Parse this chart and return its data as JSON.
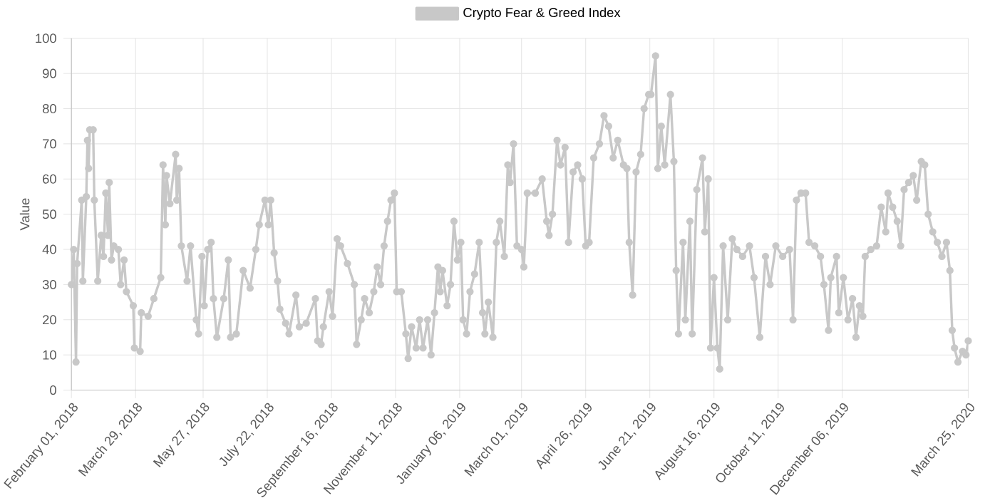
{
  "chart_data": {
    "type": "line",
    "ylabel": "Value",
    "xlim": [
      "2018-02-01",
      "2020-03-25"
    ],
    "ylim": [
      0,
      100
    ],
    "yticks": [
      0,
      10,
      20,
      30,
      40,
      50,
      60,
      70,
      80,
      90,
      100
    ],
    "xticks": [
      {
        "value": "2018-02-01",
        "label": "February 01, 2018"
      },
      {
        "value": "2018-03-29",
        "label": "March 29, 2018"
      },
      {
        "value": "2018-05-27",
        "label": "May 27, 2018"
      },
      {
        "value": "2018-07-22",
        "label": "July 22, 2018"
      },
      {
        "value": "2018-09-16",
        "label": "September 16, 2018"
      },
      {
        "value": "2018-11-11",
        "label": "November 11, 2018"
      },
      {
        "value": "2019-01-06",
        "label": "January 06, 2019"
      },
      {
        "value": "2019-03-01",
        "label": "March 01, 2019"
      },
      {
        "value": "2019-04-26",
        "label": "April 26, 2019"
      },
      {
        "value": "2019-06-21",
        "label": "June 21, 2019"
      },
      {
        "value": "2019-08-16",
        "label": "August 16, 2019"
      },
      {
        "value": "2019-10-11",
        "label": "October 11, 2019"
      },
      {
        "value": "2019-12-06",
        "label": "December 06, 2019"
      },
      {
        "value": "2020-03-25",
        "label": "March 25, 2020"
      }
    ],
    "grid": true,
    "legend": "top",
    "marker": "circle",
    "series": [
      {
        "name": "Crypto Fear & Greed Index",
        "color": "#c8c8c8",
        "x": [
          "2018-02-01",
          "2018-02-03",
          "2018-02-05",
          "2018-02-06",
          "2018-02-10",
          "2018-02-11",
          "2018-02-14",
          "2018-02-15",
          "2018-02-16",
          "2018-02-17",
          "2018-02-20",
          "2018-02-21",
          "2018-02-24",
          "2018-02-27",
          "2018-03-01",
          "2018-03-03",
          "2018-03-05",
          "2018-03-06",
          "2018-03-08",
          "2018-03-10",
          "2018-03-14",
          "2018-03-16",
          "2018-03-19",
          "2018-03-21",
          "2018-03-27",
          "2018-03-28",
          "2018-04-02",
          "2018-04-03",
          "2018-04-09",
          "2018-04-14",
          "2018-04-20",
          "2018-04-22",
          "2018-04-24",
          "2018-04-25",
          "2018-04-28",
          "2018-05-03",
          "2018-05-04",
          "2018-05-06",
          "2018-05-08",
          "2018-05-13",
          "2018-05-16",
          "2018-05-21",
          "2018-05-23",
          "2018-05-26",
          "2018-05-28",
          "2018-05-31",
          "2018-06-03",
          "2018-06-05",
          "2018-06-08",
          "2018-06-14",
          "2018-06-18",
          "2018-06-20",
          "2018-06-25",
          "2018-07-01",
          "2018-07-07",
          "2018-07-12",
          "2018-07-15",
          "2018-07-20",
          "2018-07-23",
          "2018-07-25",
          "2018-07-28",
          "2018-07-31",
          "2018-08-02",
          "2018-08-07",
          "2018-08-10",
          "2018-08-16",
          "2018-08-19",
          "2018-08-25",
          "2018-09-02",
          "2018-09-04",
          "2018-09-07",
          "2018-09-09",
          "2018-09-14",
          "2018-09-17",
          "2018-09-21",
          "2018-09-24",
          "2018-09-30",
          "2018-10-06",
          "2018-10-08",
          "2018-10-12",
          "2018-10-15",
          "2018-10-19",
          "2018-10-23",
          "2018-10-26",
          "2018-10-29",
          "2018-11-01",
          "2018-11-04",
          "2018-11-07",
          "2018-11-10",
          "2018-11-12",
          "2018-11-16",
          "2018-11-20",
          "2018-11-22",
          "2018-11-25",
          "2018-11-29",
          "2018-12-02",
          "2018-12-05",
          "2018-12-09",
          "2018-12-12",
          "2018-12-15",
          "2018-12-18",
          "2018-12-20",
          "2018-12-22",
          "2018-12-26",
          "2018-12-29",
          "2019-01-01",
          "2019-01-04",
          "2019-01-07",
          "2019-01-09",
          "2019-01-12",
          "2019-01-15",
          "2019-01-19",
          "2019-01-23",
          "2019-01-26",
          "2019-01-28",
          "2019-01-31",
          "2019-02-04",
          "2019-02-07",
          "2019-02-10",
          "2019-02-14",
          "2019-02-17",
          "2019-02-19",
          "2019-02-22",
          "2019-02-25",
          "2019-03-01",
          "2019-03-03",
          "2019-03-06",
          "2019-03-13",
          "2019-03-19",
          "2019-03-23",
          "2019-03-25",
          "2019-03-28",
          "2019-04-01",
          "2019-04-04",
          "2019-04-08",
          "2019-04-11",
          "2019-04-15",
          "2019-04-19",
          "2019-04-23",
          "2019-04-26",
          "2019-04-29",
          "2019-05-03",
          "2019-05-08",
          "2019-05-12",
          "2019-05-16",
          "2019-05-20",
          "2019-05-24",
          "2019-05-29",
          "2019-06-01",
          "2019-06-03",
          "2019-06-06",
          "2019-06-09",
          "2019-06-13",
          "2019-06-16",
          "2019-06-20",
          "2019-06-22",
          "2019-06-26",
          "2019-06-28",
          "2019-07-01",
          "2019-07-04",
          "2019-07-09",
          "2019-07-12",
          "2019-07-14",
          "2019-07-16",
          "2019-07-20",
          "2019-07-22",
          "2019-07-26",
          "2019-07-28",
          "2019-08-01",
          "2019-08-06",
          "2019-08-08",
          "2019-08-11",
          "2019-08-13",
          "2019-08-16",
          "2019-08-19",
          "2019-08-21",
          "2019-08-24",
          "2019-08-28",
          "2019-09-01",
          "2019-09-05",
          "2019-09-10",
          "2019-09-16",
          "2019-09-20",
          "2019-09-25",
          "2019-09-30",
          "2019-10-04",
          "2019-10-09",
          "2019-10-15",
          "2019-10-21",
          "2019-10-24",
          "2019-10-27",
          "2019-10-31",
          "2019-11-04",
          "2019-11-07",
          "2019-11-12",
          "2019-11-17",
          "2019-11-20",
          "2019-11-24",
          "2019-11-26",
          "2019-12-01",
          "2019-12-03",
          "2019-12-07",
          "2019-12-11",
          "2019-12-15",
          "2019-12-18",
          "2019-12-21",
          "2019-12-24",
          "2019-12-26",
          "2019-12-31",
          "2020-01-05",
          "2020-01-09",
          "2020-01-13",
          "2020-01-15",
          "2020-01-19",
          "2020-01-23",
          "2020-01-26",
          "2020-01-29",
          "2020-02-02",
          "2020-02-06",
          "2020-02-09",
          "2020-02-13",
          "2020-02-16",
          "2020-02-19",
          "2020-02-23",
          "2020-02-27",
          "2020-03-02",
          "2020-03-06",
          "2020-03-09",
          "2020-03-11",
          "2020-03-13",
          "2020-03-16",
          "2020-03-20",
          "2020-03-23",
          "2020-03-25"
        ],
        "values": [
          30,
          40,
          8,
          36,
          54,
          31,
          55,
          71,
          63,
          74,
          74,
          54,
          31,
          44,
          38,
          56,
          44,
          59,
          37,
          41,
          40,
          30,
          37,
          28,
          24,
          12,
          11,
          22,
          21,
          26,
          32,
          64,
          47,
          61,
          53,
          67,
          54,
          63,
          41,
          31,
          41,
          20,
          16,
          38,
          24,
          40,
          42,
          26,
          15,
          26,
          37,
          15,
          16,
          34,
          29,
          40,
          47,
          54,
          47,
          54,
          39,
          31,
          23,
          19,
          16,
          27,
          18,
          19,
          26,
          14,
          13,
          18,
          28,
          21,
          43,
          41,
          36,
          30,
          13,
          20,
          26,
          22,
          28,
          35,
          30,
          41,
          48,
          54,
          56,
          28,
          28,
          16,
          9,
          18,
          12,
          20,
          12,
          20,
          10,
          22,
          35,
          28,
          34,
          24,
          30,
          48,
          37,
          42,
          20,
          16,
          28,
          33,
          42,
          22,
          16,
          25,
          15,
          42,
          48,
          38,
          64,
          59,
          70,
          41,
          40,
          35,
          56,
          56,
          60,
          48,
          44,
          50,
          71,
          64,
          69,
          42,
          62,
          64,
          60,
          41,
          42,
          66,
          70,
          78,
          75,
          66,
          71,
          64,
          63,
          42,
          27,
          62,
          67,
          80,
          84,
          84,
          95,
          63,
          75,
          64,
          84,
          65,
          34,
          16,
          42,
          20,
          48,
          16,
          57,
          66,
          45,
          60,
          12,
          32,
          12,
          6,
          41,
          20,
          43,
          40,
          38,
          41,
          32,
          15,
          38,
          30,
          41,
          38,
          40,
          20,
          54,
          56,
          56,
          42,
          41,
          38,
          30,
          17,
          32,
          38,
          22,
          32,
          20,
          26,
          15,
          24,
          21,
          38,
          40,
          41,
          52,
          45,
          56,
          52,
          48,
          41,
          57,
          59,
          61,
          54,
          65,
          64,
          50,
          45,
          42,
          38,
          42,
          34,
          17,
          12,
          8,
          11,
          10,
          14
        ]
      }
    ]
  }
}
